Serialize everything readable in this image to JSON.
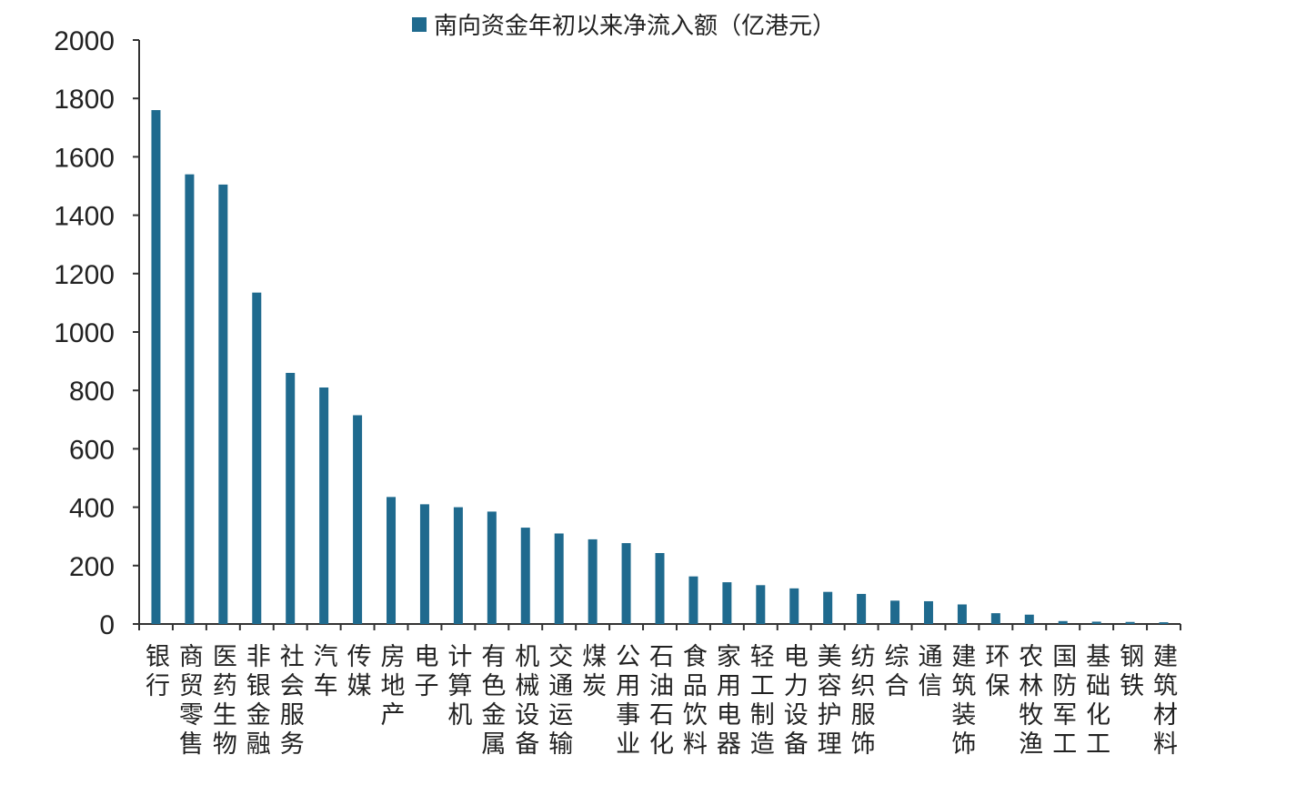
{
  "chart_data": {
    "type": "bar",
    "legend_position": "top-center",
    "series": [
      {
        "name": "南向资金年初以来净流入额（亿港元）",
        "color": "#1f6a8e",
        "values": [
          1760,
          1540,
          1505,
          1135,
          860,
          810,
          715,
          435,
          410,
          400,
          385,
          330,
          310,
          290,
          277,
          243,
          163,
          143,
          133,
          122,
          110,
          103,
          80,
          78,
          67,
          37,
          32,
          10,
          8,
          7,
          6
        ]
      }
    ],
    "categories": [
      "银行",
      "商贸零售",
      "医药生物",
      "非银金融",
      "社会服务",
      "汽车",
      "传媒",
      "房地产",
      "电子",
      "计算机",
      "有色金属",
      "机械设备",
      "交通运输",
      "煤炭",
      "公用事业",
      "石油石化",
      "食品饮料",
      "家用电器",
      "轻工制造",
      "电力设备",
      "美容护理",
      "纺织服饰",
      "综合",
      "通信",
      "建筑装饰",
      "环保",
      "农林牧渔",
      "国防军工",
      "基础化工",
      "钢铁",
      "建筑材料"
    ],
    "ylim": [
      0,
      2000
    ],
    "yticks": [
      0,
      200,
      400,
      600,
      800,
      1000,
      1200,
      1400,
      1600,
      1800,
      2000
    ],
    "grid": false
  }
}
